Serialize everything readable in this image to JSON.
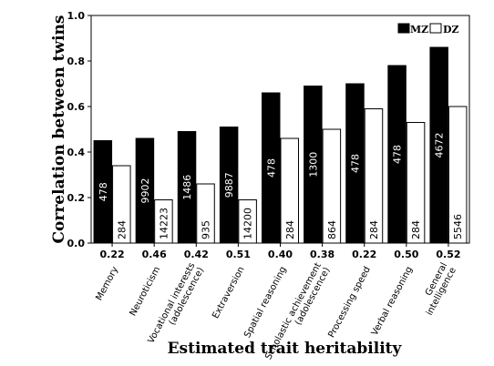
{
  "chart_data": {
    "type": "bar",
    "ylabel": "Correlation between twins",
    "xlabel": "Estimated trait heritability",
    "ylim": [
      0,
      1.0
    ],
    "yticks": [
      "0.0",
      "0.2",
      "0.4",
      "0.6",
      "0.8",
      "1.0"
    ],
    "legend_position": "top-right",
    "categories": [
      "Memory",
      "Neuroticism",
      "Vocational interests (adolescence)",
      "Extraversion",
      "Spatial reasoning",
      "Scholastic achievement (adolescence)",
      "Processing speed",
      "Verbal reasoning",
      "General intelligence"
    ],
    "category_lines": [
      [
        "Memory"
      ],
      [
        "Neuroticism"
      ],
      [
        "Vocational interests",
        "(adolescence)"
      ],
      [
        "Extraversion"
      ],
      [
        "Spatial reasoning"
      ],
      [
        "Scholastic achievement",
        "(adolescence)"
      ],
      [
        "Processing speed"
      ],
      [
        "Verbal reasoning"
      ],
      [
        "General",
        "intelligence"
      ]
    ],
    "heritability": [
      "0.22",
      "0.46",
      "0.42",
      "0.51",
      "0.40",
      "0.38",
      "0.22",
      "0.50",
      "0.52"
    ],
    "series": [
      {
        "name": "MZ",
        "color": "#000000",
        "values": [
          0.45,
          0.46,
          0.49,
          0.51,
          0.66,
          0.69,
          0.7,
          0.78,
          0.86
        ],
        "labels": [
          "478",
          "9902",
          "1486",
          "9887",
          "478",
          "1300",
          "478",
          "478",
          "4672"
        ]
      },
      {
        "name": "DZ",
        "color": "#ffffff",
        "values": [
          0.34,
          0.19,
          0.26,
          0.19,
          0.46,
          0.5,
          0.59,
          0.53,
          0.6
        ],
        "labels": [
          "284",
          "14223",
          "935",
          "14200",
          "284",
          "864",
          "284",
          "284",
          "5546"
        ]
      }
    ]
  }
}
